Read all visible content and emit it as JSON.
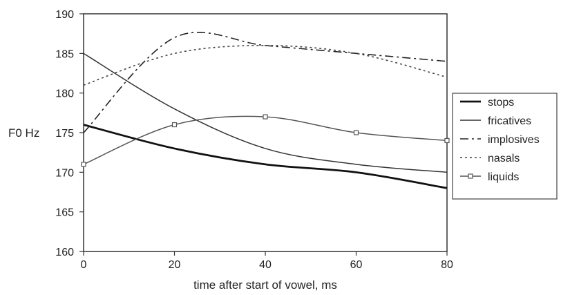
{
  "chart_data": {
    "type": "line",
    "title": "",
    "xlabel": "time after start of vowel, ms",
    "ylabel": "F0 Hz",
    "x": [
      0,
      20,
      40,
      60,
      80
    ],
    "xlim": [
      0,
      80
    ],
    "ylim": [
      160,
      190
    ],
    "xticks": [
      "0",
      "20",
      "40",
      "60",
      "80"
    ],
    "yticks": [
      "160",
      "165",
      "170",
      "175",
      "180",
      "185",
      "190"
    ],
    "grid": false,
    "legend_position": "right",
    "series": [
      {
        "name": "stops",
        "values": [
          176,
          173,
          171,
          170,
          168
        ],
        "style": "thick-solid",
        "color": "#111111"
      },
      {
        "name": "fricatives",
        "values": [
          185,
          178,
          173,
          171,
          170
        ],
        "style": "solid",
        "color": "#333333"
      },
      {
        "name": "implosives",
        "values": [
          175,
          187,
          186,
          185,
          184
        ],
        "style": "dash-dot",
        "color": "#222222"
      },
      {
        "name": "nasals",
        "values": [
          181,
          185,
          186,
          185,
          182
        ],
        "style": "dotted",
        "color": "#444444"
      },
      {
        "name": "liquids",
        "values": [
          171,
          176,
          177,
          175,
          174
        ],
        "style": "solid-square-markers",
        "color": "#555555"
      }
    ]
  }
}
